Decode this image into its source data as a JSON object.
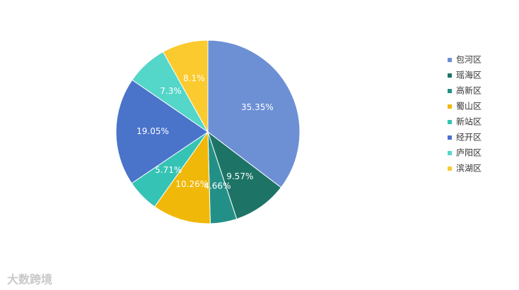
{
  "chart_data": {
    "type": "pie",
    "categories": [
      "包河区",
      "瑶海区",
      "高新区",
      "蜀山区",
      "新站区",
      "经开区",
      "庐阳区",
      "滨湖区"
    ],
    "values": [
      35.35,
      9.57,
      4.66,
      10.26,
      5.71,
      19.05,
      7.3,
      8.1
    ],
    "value_labels": [
      "35.35%",
      "9.57%",
      "4.66%",
      "10.26%",
      "5.71%",
      "19.05%",
      "7.3%",
      "8.1%"
    ],
    "colors": [
      "#6d90d5",
      "#1d7466",
      "#239087",
      "#f0b809",
      "#35c3b5",
      "#4a73ca",
      "#54d6c9",
      "#fbca2f"
    ],
    "legend": "right"
  },
  "watermark": "大数跨境"
}
